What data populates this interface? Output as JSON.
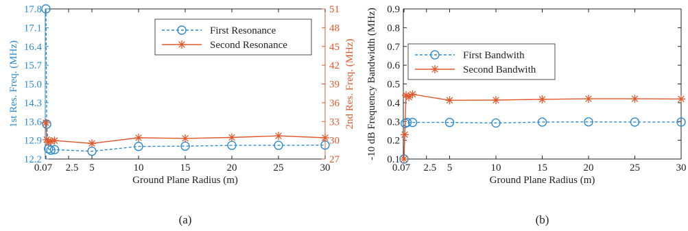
{
  "chart_data": [
    {
      "type": "line",
      "caption": "(a)",
      "xlabel": "Ground Plane Radius (m)",
      "ylabel_left": "1st Res. Freq. (MHz)",
      "ylabel_right": "2nd Res. Freq. (MHz)",
      "xlim": [
        0,
        30
      ],
      "xticks": [
        0.07,
        2.5,
        5,
        10,
        15,
        20,
        25,
        30
      ],
      "xtick_labels": [
        "0.07",
        "2.5",
        "5",
        "10",
        "15",
        "20",
        "25",
        "30"
      ],
      "ylim_left": [
        12.2,
        17.8
      ],
      "yticks_left": [
        "12.2",
        "12.9",
        "13.6",
        "14.3",
        "15.0",
        "15.7",
        "16.4",
        "17.1",
        "17.8"
      ],
      "ylim_right": [
        27,
        51
      ],
      "yticks_right": [
        "27",
        "30",
        "33",
        "36",
        "39",
        "42",
        "45",
        "48",
        "51"
      ],
      "grid": false,
      "legend_position": "top-right",
      "series": [
        {
          "name": "First Resonance",
          "axis": "left",
          "color": "#2a8bd3",
          "style": "dashed",
          "marker": "circle",
          "x": [
            0.07,
            0.15,
            0.35,
            0.6,
            1.0,
            5,
            10,
            15,
            20,
            25,
            30
          ],
          "y": [
            17.8,
            13.5,
            12.58,
            12.53,
            12.55,
            12.49,
            12.67,
            12.68,
            12.71,
            12.71,
            12.72
          ]
        },
        {
          "name": "Second Resonance",
          "axis": "right",
          "color": "#e0582a",
          "style": "solid",
          "marker": "star",
          "x": [
            0.07,
            0.15,
            0.35,
            0.6,
            1.0,
            5,
            10,
            15,
            20,
            25,
            30
          ],
          "y": [
            32.8,
            30.1,
            29.7,
            29.85,
            29.95,
            29.5,
            30.4,
            30.3,
            30.45,
            30.7,
            30.4
          ]
        }
      ]
    },
    {
      "type": "line",
      "caption": "(b)",
      "xlabel": "Ground Plane Radius (m)",
      "ylabel": "-10 dB Frequency Bandwidth (MHz)",
      "xlim": [
        0,
        30
      ],
      "xticks": [
        0.07,
        2.5,
        5,
        10,
        15,
        20,
        25,
        30
      ],
      "xtick_labels": [
        "0.07",
        "2.5",
        "5",
        "10",
        "15",
        "20",
        "25",
        "30"
      ],
      "ylim": [
        0.1,
        0.9
      ],
      "yticks": [
        "0.1",
        "0.2",
        "0.3",
        "0.4",
        "0.5",
        "0.6",
        "0.7",
        "0.8",
        "0.9"
      ],
      "grid": false,
      "legend_position": "top-left",
      "series": [
        {
          "name": "First Bandwith",
          "color": "#2a8bd3",
          "style": "dashed",
          "marker": "circle",
          "x": [
            0.07,
            0.2,
            0.4,
            1.0,
            5,
            10,
            15,
            20,
            25,
            30
          ],
          "y": [
            0.1,
            0.29,
            0.295,
            0.295,
            0.295,
            0.292,
            0.297,
            0.298,
            0.297,
            0.297
          ]
        },
        {
          "name": "Second Bandwith",
          "color": "#e0582a",
          "style": "solid",
          "marker": "star",
          "x": [
            0.07,
            0.15,
            0.3,
            0.6,
            1.0,
            5,
            10,
            15,
            20,
            25,
            30
          ],
          "y": [
            0.1,
            0.23,
            0.44,
            0.43,
            0.445,
            0.413,
            0.414,
            0.418,
            0.421,
            0.421,
            0.42
          ]
        }
      ]
    }
  ]
}
